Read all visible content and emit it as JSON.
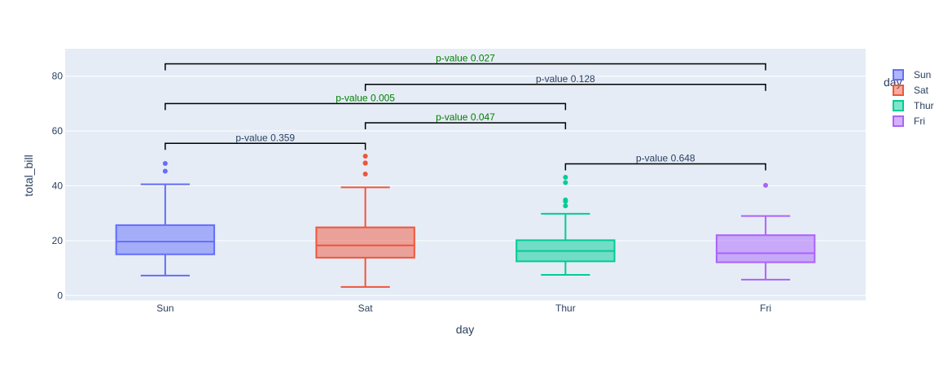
{
  "chart_data": {
    "type": "box",
    "x_label": "day",
    "y_label": "total_bill",
    "categories": [
      "Sun",
      "Sat",
      "Thur",
      "Fri"
    ],
    "y_ticks": [
      0,
      20,
      40,
      60,
      80
    ],
    "ylim": [
      -2,
      90
    ],
    "grid": true,
    "legend": {
      "title": "day",
      "placement": "right",
      "items": [
        "Sun",
        "Sat",
        "Thur",
        "Fri"
      ]
    },
    "colors": {
      "Sun": "#636efa",
      "Sat": "#ef553b",
      "Thur": "#00cc96",
      "Fri": "#ab63fa",
      "plot_bg": "#e5ecf6",
      "significant_text": "#008000",
      "bracket": "#000000"
    },
    "series": [
      {
        "name": "Sun",
        "min": 7.25,
        "q1": 14.99,
        "median": 19.63,
        "q3": 25.65,
        "max": 40.55,
        "outliers": [
          45.35,
          48.17
        ]
      },
      {
        "name": "Sat",
        "min": 3.07,
        "q1": 13.77,
        "median": 18.24,
        "q3": 24.82,
        "max": 39.42,
        "outliers": [
          44.3,
          48.27,
          48.33,
          50.81
        ]
      },
      {
        "name": "Thur",
        "min": 7.51,
        "q1": 12.43,
        "median": 16.2,
        "q3": 20.14,
        "max": 29.8,
        "outliers": [
          32.68,
          34.3,
          34.83,
          41.19,
          43.11
        ]
      },
      {
        "name": "Fri",
        "min": 5.75,
        "q1": 12.09,
        "median": 15.38,
        "q3": 21.98,
        "max": 28.97,
        "outliers": [
          40.17
        ]
      }
    ],
    "annotations": [
      {
        "from": "Sun",
        "to": "Fri",
        "y": 84.5,
        "text": "p-value 0.027",
        "significant": true
      },
      {
        "from": "Sat",
        "to": "Fri",
        "y": 77,
        "text": "p-value 0.128",
        "significant": false
      },
      {
        "from": "Sun",
        "to": "Thur",
        "y": 70,
        "text": "p-value 0.005",
        "significant": true
      },
      {
        "from": "Sat",
        "to": "Thur",
        "y": 63,
        "text": "p-value 0.047",
        "significant": true
      },
      {
        "from": "Sun",
        "to": "Sat",
        "y": 55.5,
        "text": "p-value 0.359",
        "significant": false
      },
      {
        "from": "Thur",
        "to": "Fri",
        "y": 48,
        "text": "p-value 0.648",
        "significant": false
      }
    ]
  }
}
